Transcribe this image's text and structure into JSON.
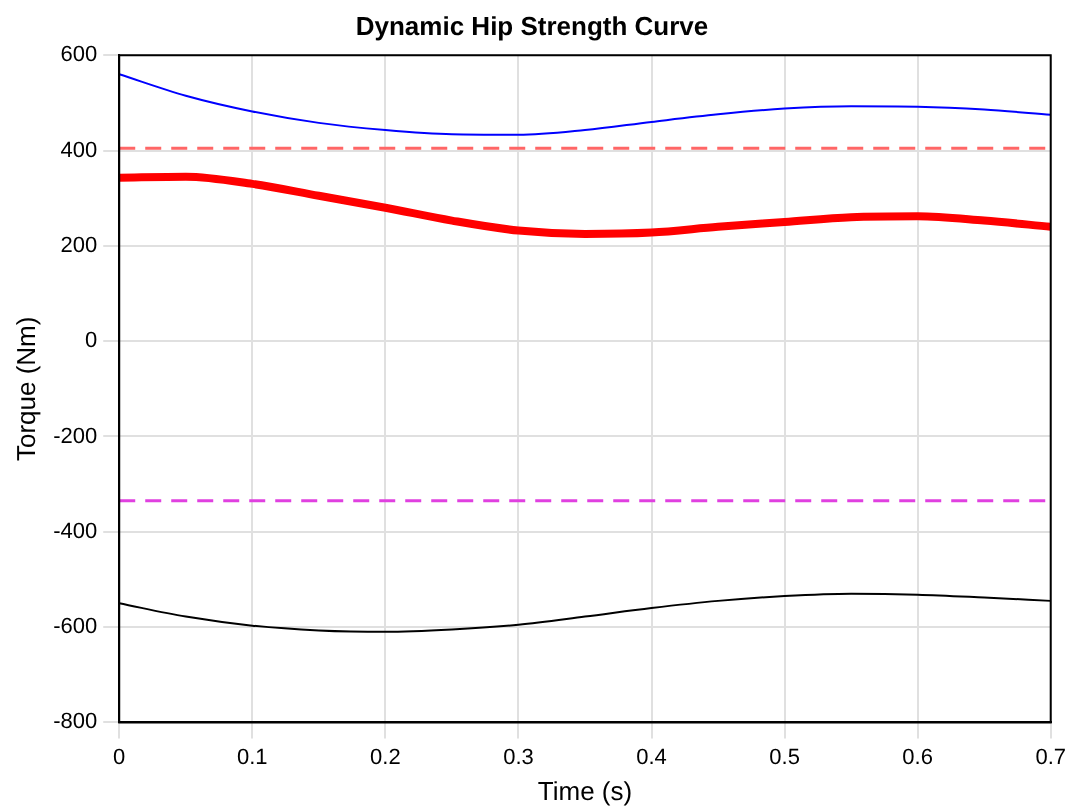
{
  "chart_data": {
    "type": "line",
    "title": "Dynamic Hip Strength Curve",
    "xlabel": "Time (s)",
    "ylabel": "Torque (Nm)",
    "x": [
      0,
      0.05,
      0.1,
      0.15,
      0.2,
      0.25,
      0.3,
      0.35,
      0.4,
      0.45,
      0.5,
      0.55,
      0.6,
      0.65,
      0.7
    ],
    "series": [
      {
        "color": "#0000ff",
        "values": [
          560,
          515,
          482,
          458,
          443,
          434,
          433,
          443,
          460,
          476,
          488,
          493,
          492,
          486,
          475
        ]
      },
      {
        "color": "#ff0000",
        "values": [
          343,
          345,
          330,
          305,
          280,
          253,
          232,
          225,
          228,
          240,
          250,
          260,
          262,
          253,
          240
        ]
      },
      {
        "color": "#000000",
        "values": [
          -550,
          -578,
          -597,
          -607,
          -610,
          -605,
          -595,
          -578,
          -560,
          -545,
          -535,
          -530,
          -532,
          -538,
          -545
        ]
      }
    ],
    "ref_lines": [
      {
        "axis": "y",
        "value": 405,
        "color": "#ff6666",
        "line_style": "dashed"
      },
      {
        "axis": "y",
        "value": -335,
        "color": "#e040e0",
        "line_style": "dashed"
      }
    ],
    "xlim": [
      0,
      0.7
    ],
    "xticks": [
      0,
      0.1,
      0.2,
      0.3,
      0.4,
      0.5,
      0.6,
      0.7
    ],
    "ylim": [
      -800,
      600
    ],
    "yticks": [
      -800,
      -600,
      -400,
      -200,
      0,
      200,
      400,
      600
    ],
    "grid": true,
    "marker": "none",
    "line_style": "solid"
  }
}
